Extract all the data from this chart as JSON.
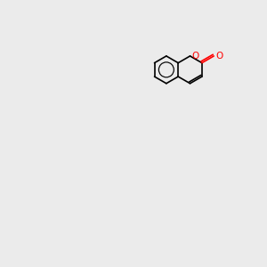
{
  "background_color": "#ebebeb",
  "bond_color": "#000000",
  "N_color": "#0000FF",
  "O_color": "#FF0000",
  "S_color": "#CCCC00",
  "H_color": "#008080",
  "font_size": 7.5,
  "lw": 1.2,
  "lw2": 2.2
}
